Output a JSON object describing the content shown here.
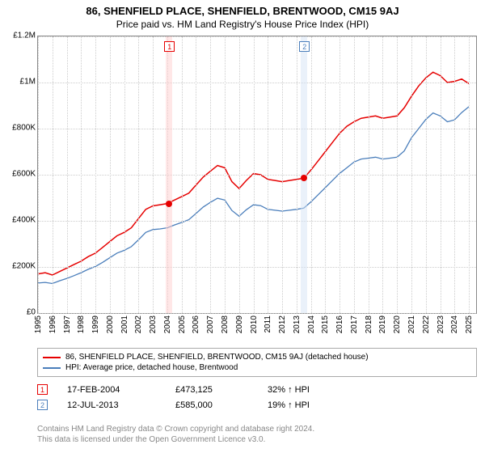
{
  "title": "86, SHENFIELD PLACE, SHENFIELD, BRENTWOOD, CM15 9AJ",
  "subtitle": "Price paid vs. HM Land Registry's House Price Index (HPI)",
  "chart": {
    "type": "line",
    "x_start_year": 1995,
    "x_end_year": 2025.5,
    "ylim": [
      0,
      1200000
    ],
    "y_ticks": [
      0,
      200000,
      400000,
      600000,
      800000,
      1000000,
      1200000
    ],
    "y_tick_labels": [
      "£0",
      "£200K",
      "£400K",
      "£600K",
      "£800K",
      "£1M",
      "£1.2M"
    ],
    "x_ticks_years": [
      1995,
      1996,
      1997,
      1998,
      1999,
      2000,
      2001,
      2002,
      2003,
      2004,
      2005,
      2006,
      2007,
      2008,
      2009,
      2010,
      2011,
      2012,
      2013,
      2014,
      2015,
      2016,
      2017,
      2018,
      2019,
      2020,
      2021,
      2022,
      2023,
      2024,
      2025
    ],
    "background_color": "#ffffff",
    "grid_color": "#cccccc",
    "axis_color": "#888888",
    "series": [
      {
        "name": "86, SHENFIELD PLACE, SHENFIELD, BRENTWOOD, CM15 9AJ (detached house)",
        "color": "#e60000",
        "line_width": 1.5,
        "points": [
          [
            1995.0,
            170000
          ],
          [
            1995.5,
            175000
          ],
          [
            1996.0,
            165000
          ],
          [
            1996.5,
            180000
          ],
          [
            1997.0,
            195000
          ],
          [
            1997.5,
            210000
          ],
          [
            1998.0,
            225000
          ],
          [
            1998.5,
            245000
          ],
          [
            1999.0,
            260000
          ],
          [
            1999.5,
            285000
          ],
          [
            2000.0,
            310000
          ],
          [
            2000.5,
            335000
          ],
          [
            2001.0,
            350000
          ],
          [
            2001.5,
            370000
          ],
          [
            2002.0,
            410000
          ],
          [
            2002.5,
            450000
          ],
          [
            2003.0,
            465000
          ],
          [
            2003.5,
            470000
          ],
          [
            2004.0,
            475000
          ],
          [
            2004.5,
            490000
          ],
          [
            2005.0,
            505000
          ],
          [
            2005.5,
            520000
          ],
          [
            2006.0,
            555000
          ],
          [
            2006.5,
            590000
          ],
          [
            2007.0,
            615000
          ],
          [
            2007.5,
            640000
          ],
          [
            2008.0,
            630000
          ],
          [
            2008.5,
            570000
          ],
          [
            2009.0,
            540000
          ],
          [
            2009.5,
            575000
          ],
          [
            2010.0,
            605000
          ],
          [
            2010.5,
            600000
          ],
          [
            2011.0,
            580000
          ],
          [
            2011.5,
            575000
          ],
          [
            2012.0,
            570000
          ],
          [
            2012.5,
            575000
          ],
          [
            2013.0,
            580000
          ],
          [
            2013.5,
            585000
          ],
          [
            2014.0,
            620000
          ],
          [
            2014.5,
            660000
          ],
          [
            2015.0,
            700000
          ],
          [
            2015.5,
            740000
          ],
          [
            2016.0,
            780000
          ],
          [
            2016.5,
            810000
          ],
          [
            2017.0,
            830000
          ],
          [
            2017.5,
            845000
          ],
          [
            2018.0,
            850000
          ],
          [
            2018.5,
            855000
          ],
          [
            2019.0,
            845000
          ],
          [
            2019.5,
            850000
          ],
          [
            2020.0,
            855000
          ],
          [
            2020.5,
            890000
          ],
          [
            2021.0,
            940000
          ],
          [
            2021.5,
            985000
          ],
          [
            2022.0,
            1020000
          ],
          [
            2022.5,
            1045000
          ],
          [
            2023.0,
            1030000
          ],
          [
            2023.5,
            1000000
          ],
          [
            2024.0,
            1005000
          ],
          [
            2024.5,
            1015000
          ],
          [
            2025.0,
            995000
          ]
        ]
      },
      {
        "name": "HPI: Average price, detached house, Brentwood",
        "color": "#4a7ebb",
        "line_width": 1.3,
        "points": [
          [
            1995.0,
            130000
          ],
          [
            1995.5,
            133000
          ],
          [
            1996.0,
            128000
          ],
          [
            1996.5,
            140000
          ],
          [
            1997.0,
            150000
          ],
          [
            1997.5,
            162000
          ],
          [
            1998.0,
            175000
          ],
          [
            1998.5,
            190000
          ],
          [
            1999.0,
            202000
          ],
          [
            1999.5,
            220000
          ],
          [
            2000.0,
            240000
          ],
          [
            2000.5,
            260000
          ],
          [
            2001.0,
            272000
          ],
          [
            2001.5,
            288000
          ],
          [
            2002.0,
            318000
          ],
          [
            2002.5,
            350000
          ],
          [
            2003.0,
            362000
          ],
          [
            2003.5,
            365000
          ],
          [
            2004.0,
            370000
          ],
          [
            2004.5,
            382000
          ],
          [
            2005.0,
            393000
          ],
          [
            2005.5,
            405000
          ],
          [
            2006.0,
            432000
          ],
          [
            2006.5,
            460000
          ],
          [
            2007.0,
            480000
          ],
          [
            2007.5,
            498000
          ],
          [
            2008.0,
            490000
          ],
          [
            2008.5,
            445000
          ],
          [
            2009.0,
            420000
          ],
          [
            2009.5,
            448000
          ],
          [
            2010.0,
            470000
          ],
          [
            2010.5,
            466000
          ],
          [
            2011.0,
            450000
          ],
          [
            2011.5,
            446000
          ],
          [
            2012.0,
            442000
          ],
          [
            2012.5,
            446000
          ],
          [
            2013.0,
            450000
          ],
          [
            2013.5,
            455000
          ],
          [
            2014.0,
            482000
          ],
          [
            2014.5,
            513000
          ],
          [
            2015.0,
            544000
          ],
          [
            2015.5,
            575000
          ],
          [
            2016.0,
            606000
          ],
          [
            2016.5,
            630000
          ],
          [
            2017.0,
            655000
          ],
          [
            2017.5,
            668000
          ],
          [
            2018.0,
            672000
          ],
          [
            2018.5,
            676000
          ],
          [
            2019.0,
            668000
          ],
          [
            2019.5,
            672000
          ],
          [
            2020.0,
            676000
          ],
          [
            2020.5,
            703000
          ],
          [
            2021.0,
            760000
          ],
          [
            2021.5,
            800000
          ],
          [
            2022.0,
            840000
          ],
          [
            2022.5,
            868000
          ],
          [
            2023.0,
            855000
          ],
          [
            2023.5,
            830000
          ],
          [
            2024.0,
            838000
          ],
          [
            2024.5,
            870000
          ],
          [
            2025.0,
            895000
          ]
        ]
      }
    ],
    "sale_markers": [
      {
        "number": "1",
        "x_year": 2004.13,
        "band_color": "#ffd0d0",
        "border_color": "#e60000",
        "point_color": "#e60000",
        "point_y": 473125
      },
      {
        "number": "2",
        "x_year": 2013.53,
        "band_color": "#d6e4f5",
        "border_color": "#4a7ebb",
        "point_color": "#e60000",
        "point_y": 585000
      }
    ]
  },
  "legend": [
    {
      "color": "#e60000",
      "label": "86, SHENFIELD PLACE, SHENFIELD, BRENTWOOD, CM15 9AJ (detached house)"
    },
    {
      "color": "#4a7ebb",
      "label": "HPI: Average price, detached house, Brentwood"
    }
  ],
  "sales": [
    {
      "number": "1",
      "border_color": "#e60000",
      "date": "17-FEB-2004",
      "price": "£473,125",
      "delta": "32% ↑ HPI"
    },
    {
      "number": "2",
      "border_color": "#4a7ebb",
      "date": "12-JUL-2013",
      "price": "£585,000",
      "delta": "19% ↑ HPI"
    }
  ],
  "footer_line1": "Contains HM Land Registry data © Crown copyright and database right 2024.",
  "footer_line2": "This data is licensed under the Open Government Licence v3.0."
}
